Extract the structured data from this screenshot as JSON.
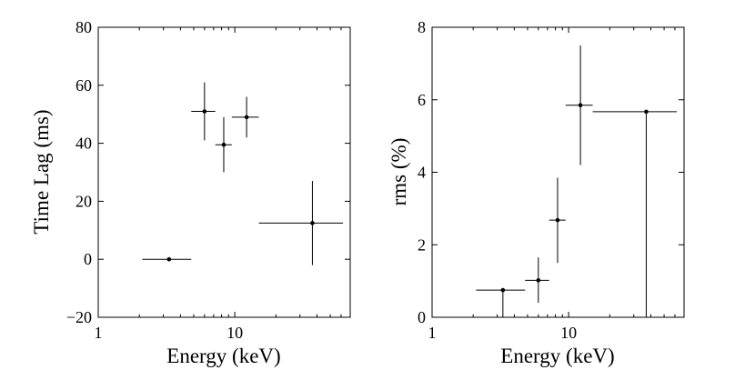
{
  "chart_data": [
    {
      "type": "scatter",
      "title": "",
      "xlabel": "Energy (keV)",
      "ylabel": "Time Lag (ms)",
      "xscale": "log",
      "xlim": [
        1,
        70
      ],
      "ylim": [
        -20,
        80
      ],
      "grid": false,
      "x_ticks": [
        1,
        10
      ],
      "x_tick_labels": [
        "1",
        "10"
      ],
      "y_ticks": [
        -20,
        0,
        20,
        40,
        60,
        80
      ],
      "y_tick_labels": [
        "−20",
        "0",
        "20",
        "40",
        "60",
        "80"
      ],
      "points": [
        {
          "x": 3.3,
          "y": 0,
          "x_lo": 2.1,
          "x_hi": 4.8,
          "y_lo": 0,
          "y_hi": 0
        },
        {
          "x": 6.0,
          "y": 51,
          "x_lo": 4.8,
          "x_hi": 7.2,
          "y_lo": 41,
          "y_hi": 61
        },
        {
          "x": 8.3,
          "y": 39.5,
          "x_lo": 7.2,
          "x_hi": 9.5,
          "y_lo": 30,
          "y_hi": 49
        },
        {
          "x": 12.2,
          "y": 49,
          "x_lo": 9.5,
          "x_hi": 15.0,
          "y_lo": 42,
          "y_hi": 56
        },
        {
          "x": 37,
          "y": 12.5,
          "x_lo": 15.0,
          "x_hi": 62,
          "y_lo": -2,
          "y_hi": 27
        }
      ]
    },
    {
      "type": "scatter",
      "title": "",
      "xlabel": "Energy (keV)",
      "ylabel": "rms (%)",
      "xscale": "log",
      "xlim": [
        1,
        70
      ],
      "ylim": [
        0,
        8
      ],
      "grid": false,
      "x_ticks": [
        1,
        10
      ],
      "x_tick_labels": [
        "1",
        "10"
      ],
      "y_ticks": [
        0,
        2,
        4,
        6,
        8
      ],
      "y_tick_labels": [
        "0",
        "2",
        "4",
        "6",
        "8"
      ],
      "points": [
        {
          "x": 3.3,
          "y": 0.75,
          "x_lo": 2.1,
          "x_hi": 4.8,
          "y_lo": 0,
          "y_hi": 0.75
        },
        {
          "x": 6.0,
          "y": 1.02,
          "x_lo": 4.8,
          "x_hi": 7.2,
          "y_lo": 0.4,
          "y_hi": 1.65
        },
        {
          "x": 8.3,
          "y": 2.68,
          "x_lo": 7.2,
          "x_hi": 9.5,
          "y_lo": 1.5,
          "y_hi": 3.85
        },
        {
          "x": 12.2,
          "y": 5.85,
          "x_lo": 9.5,
          "x_hi": 15.0,
          "y_lo": 4.2,
          "y_hi": 7.5
        },
        {
          "x": 37,
          "y": 5.67,
          "x_lo": 15.0,
          "x_hi": 62,
          "y_lo": 0,
          "y_hi": 5.67
        }
      ]
    }
  ]
}
